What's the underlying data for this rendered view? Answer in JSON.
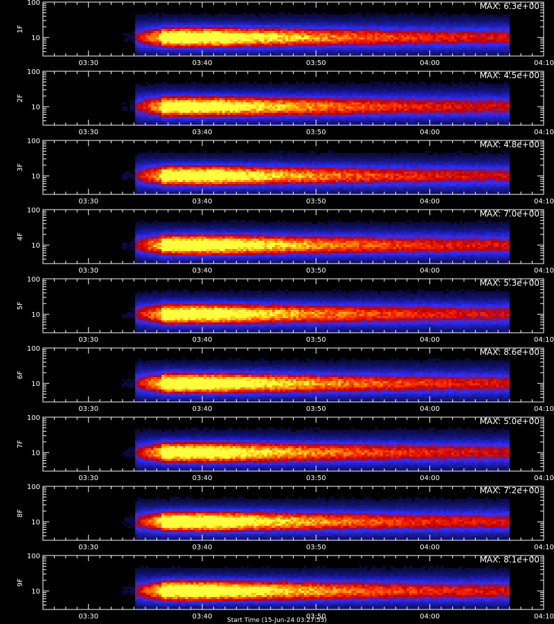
{
  "chart_data": {
    "type": "heatmap",
    "panels": [
      {
        "label": "1F",
        "max_label": "MAX: 6.3e+00",
        "max": 6.3
      },
      {
        "label": "2F",
        "max_label": "MAX: 4.5e+00",
        "max": 4.5
      },
      {
        "label": "3F",
        "max_label": "MAX: 4.8e+00",
        "max": 4.8
      },
      {
        "label": "4F",
        "max_label": "MAX: 7.0e+00",
        "max": 7.0
      },
      {
        "label": "5F",
        "max_label": "MAX: 5.3e+00",
        "max": 5.3
      },
      {
        "label": "6F",
        "max_label": "MAX: 8.6e+00",
        "max": 8.6
      },
      {
        "label": "7F",
        "max_label": "MAX: 5.0e+00",
        "max": 5.0
      },
      {
        "label": "8F",
        "max_label": "MAX: 7.2e+00",
        "max": 7.2
      },
      {
        "label": "9F",
        "max_label": "MAX: 8.1e+00",
        "max": 8.1
      }
    ],
    "x_ticks": [
      "03:30",
      "03:40",
      "03:50",
      "04:00",
      "04:10"
    ],
    "x_range": [
      "03:26",
      "04:10"
    ],
    "y_scale": "log",
    "y_range": [
      3,
      100
    ],
    "y_ticks": [
      "10",
      "100"
    ],
    "signal_start": "03:35",
    "signal_end": "04:07",
    "colormap": [
      "#000000",
      "#1a1aa0",
      "#3030ff",
      "#c00000",
      "#ff3000",
      "#ffa000",
      "#ffff40"
    ]
  },
  "footer": {
    "xlabel": "Start Time (15-Jun-24 03:27:55)"
  }
}
